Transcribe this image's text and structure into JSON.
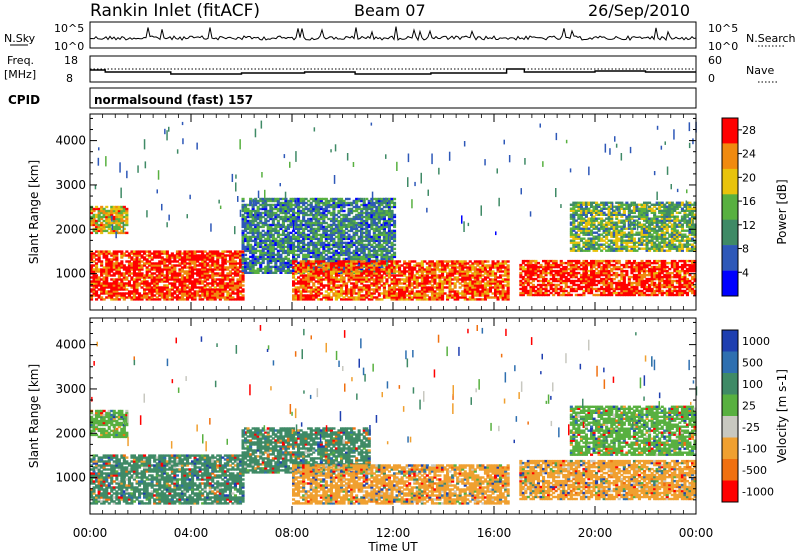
{
  "header": {
    "site": "Rankin Inlet (fitACF)",
    "beam": "Beam 07",
    "date": "26/Sep/2010"
  },
  "noise_panel": {
    "left_label": "N.Sky",
    "right_label": "N.Search",
    "left_ticks": [
      "10^5",
      "10^0"
    ],
    "right_ticks": [
      "10^5",
      "10^0"
    ]
  },
  "freq_panel": {
    "left_label": "Freq.",
    "left_unit": "[MHz]",
    "right_label": "Nave",
    "left_ticks": [
      "18",
      "8"
    ],
    "right_ticks": [
      "60",
      "0"
    ]
  },
  "cpid": {
    "label": "CPID",
    "value": "normalsound (fast) 157"
  },
  "x_axis": {
    "ticks": [
      "00:00",
      "04:00",
      "08:00",
      "12:00",
      "16:00",
      "20:00",
      "00:00"
    ],
    "label": "Time UT"
  },
  "chart_data": [
    {
      "type": "heatmap",
      "name": "power",
      "ylabel": "Slant Range [km]",
      "yticks": [
        1000,
        2000,
        3000,
        4000
      ],
      "ylim": [
        180,
        4600
      ],
      "xlim_hours": [
        0,
        24
      ],
      "colorbar": {
        "label": "Power [dB]",
        "ticks": [
          4,
          8,
          12,
          16,
          20,
          24,
          28
        ],
        "range": [
          0,
          30
        ],
        "colors": [
          "#0000ff",
          "#2e58b8",
          "#3f8a66",
          "#58b040",
          "#e8c30c",
          "#f08a10",
          "#ff0000"
        ]
      },
      "regions": [
        {
          "t0": 0.0,
          "t1": 6.0,
          "r0": 400,
          "r1": 1500,
          "value": 28
        },
        {
          "t0": 0.0,
          "t1": 1.5,
          "r0": 1900,
          "r1": 2500,
          "value": 20
        },
        {
          "t0": 6.0,
          "t1": 12.0,
          "r0": 1000,
          "r1": 2700,
          "value": 10
        },
        {
          "t0": 8.0,
          "t1": 16.5,
          "r0": 400,
          "r1": 1300,
          "value": 26
        },
        {
          "t0": 17.0,
          "t1": 24.0,
          "r0": 500,
          "r1": 1300,
          "value": 28
        },
        {
          "t0": 19.0,
          "t1": 24.0,
          "r0": 1500,
          "r1": 2600,
          "value": 14
        }
      ]
    },
    {
      "type": "heatmap",
      "name": "velocity",
      "ylabel": "Slant Range [km]",
      "yticks": [
        1000,
        2000,
        3000,
        4000
      ],
      "ylim": [
        180,
        4600
      ],
      "xlim_hours": [
        0,
        24
      ],
      "colorbar": {
        "label": "Velocity [m s-1]",
        "ticks": [
          1000,
          500,
          100,
          25,
          -25,
          -100,
          -500,
          -1000
        ],
        "colors": [
          "#1f3fb0",
          "#2e6fb0",
          "#3f8a66",
          "#58b040",
          "#c8c8c0",
          "#f0a030",
          "#f07010",
          "#ff0000"
        ]
      },
      "regions": [
        {
          "t0": 0.0,
          "t1": 6.0,
          "r0": 400,
          "r1": 1500,
          "value": 100
        },
        {
          "t0": 0.0,
          "t1": 1.5,
          "r0": 1900,
          "r1": 2500,
          "value": 25
        },
        {
          "t0": 6.0,
          "t1": 11.0,
          "r0": 1100,
          "r1": 2100,
          "value": 100
        },
        {
          "t0": 8.0,
          "t1": 16.5,
          "r0": 400,
          "r1": 1300,
          "value": -100
        },
        {
          "t0": 17.0,
          "t1": 24.0,
          "r0": 500,
          "r1": 1400,
          "value": -100
        },
        {
          "t0": 19.0,
          "t1": 24.0,
          "r0": 1500,
          "r1": 2600,
          "value": 25
        }
      ]
    }
  ]
}
